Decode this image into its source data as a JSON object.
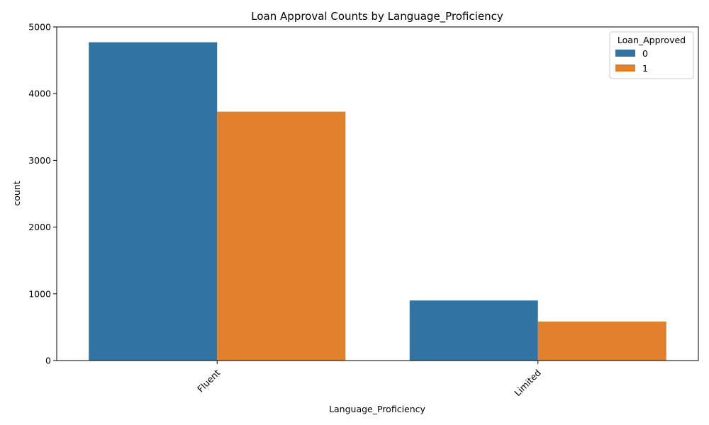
{
  "chart_data": {
    "type": "bar",
    "title": "Loan Approval Counts by Language_Proficiency",
    "xlabel": "Language_Proficiency",
    "ylabel": "count",
    "categories": [
      "Fluent",
      "Limited"
    ],
    "series": [
      {
        "name": "0",
        "values": [
          4770,
          900
        ],
        "color": "#3274a1"
      },
      {
        "name": "1",
        "values": [
          3730,
          585
        ],
        "color": "#e1812c"
      }
    ],
    "ylim": [
      0,
      5000
    ],
    "yticks": [
      0,
      1000,
      2000,
      3000,
      4000,
      5000
    ],
    "legend": {
      "title": "Loan_Approved",
      "placement": "top-right"
    },
    "grid": false
  }
}
